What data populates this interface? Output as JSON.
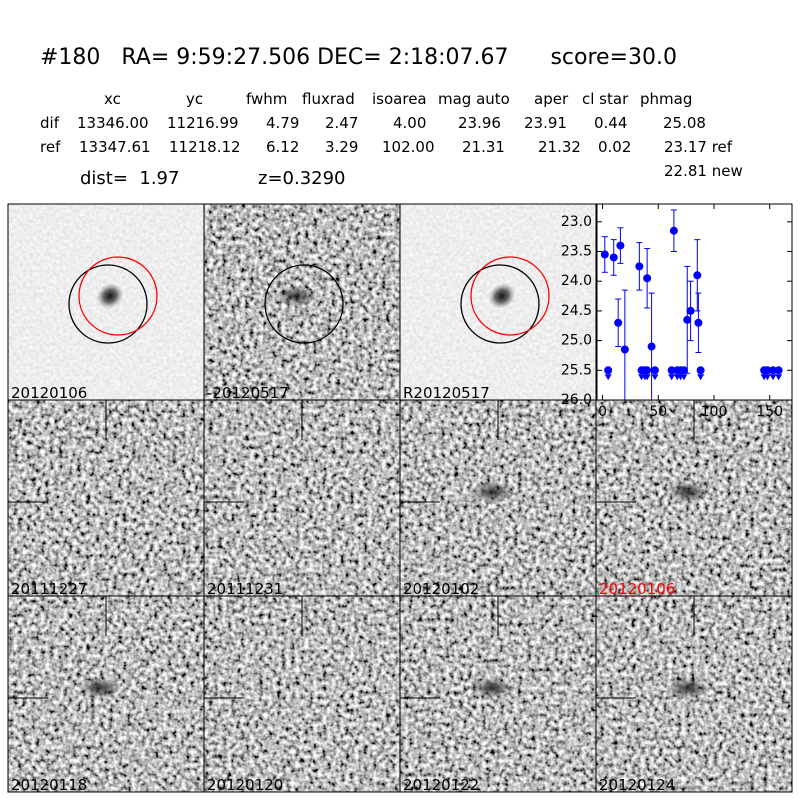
{
  "header": {
    "title": "#180   RA= 9:59:27.506 DEC= 2:18:07.67      score=30.0",
    "columns": [
      "xc",
      "yc",
      "fwhm",
      "fluxrad",
      "isoarea",
      "mag auto",
      "aper",
      "cl star",
      "phmag"
    ],
    "rows": [
      [
        "dif",
        "13346.00",
        "11216.99",
        "4.79",
        "2.47",
        "4.00",
        "23.96",
        "23.91",
        "0.44",
        "25.08"
      ],
      [
        "ref",
        "13347.61",
        "11218.12",
        "6.12",
        "3.29",
        "102.00",
        "21.31",
        "21.32",
        "0.02",
        "23.17 ref"
      ]
    ],
    "extra": "22.81 new",
    "dist": "dist=  1.97",
    "z": "z=0.3290"
  },
  "panels": [
    {
      "label": "20120106"
    },
    {
      "label": "-20120517"
    },
    {
      "label": "R20120517"
    },
    {
      "label": "20111227"
    },
    {
      "label": "20111231"
    },
    {
      "label": "20120102"
    },
    {
      "label": "20120106",
      "color": "#ff0000"
    },
    {
      "label": "20120118"
    },
    {
      "label": "20120120"
    },
    {
      "label": "20120122"
    },
    {
      "label": "20120124"
    }
  ],
  "chart_data": {
    "type": "errorbar",
    "xlim": [
      -5,
      170
    ],
    "ylim": [
      26.0,
      22.7
    ],
    "xticks": [
      0,
      50,
      100,
      150
    ],
    "yticks": [
      {
        "value": 23,
        "label": "23.0"
      },
      {
        "value": 23.5,
        "label": "23.5"
      },
      {
        "value": 24,
        "label": "24.0"
      },
      {
        "value": 24.5,
        "label": "24.5"
      },
      {
        "value": 25,
        "label": "25.0"
      },
      {
        "value": 25.5,
        "label": "25.5"
      },
      {
        "value": 26,
        "label": "26.0"
      }
    ],
    "series": [
      {
        "color": "#0000ff",
        "marker": "circle",
        "x": [
          2,
          10,
          14,
          16,
          20,
          33,
          40,
          44,
          64,
          76,
          79,
          85,
          86
        ],
        "values": [
          23.55,
          23.6,
          24.7,
          23.4,
          25.15,
          23.75,
          23.95,
          25.1,
          23.15,
          24.65,
          24.5,
          23.9,
          24.7
        ],
        "errors": [
          0.3,
          0.3,
          0.4,
          0.3,
          1.0,
          0.4,
          0.5,
          0.9,
          0.35,
          0.9,
          0.5,
          0.6,
          0.5
        ]
      },
      {
        "color": "#0000ff",
        "marker": "limit",
        "x": [
          5,
          35,
          38,
          40,
          47,
          62,
          67,
          70,
          73,
          88,
          145,
          148,
          153,
          158
        ],
        "values": [
          25.5,
          25.5,
          25.5,
          25.5,
          25.5,
          25.5,
          25.5,
          25.5,
          25.5,
          25.5,
          25.5,
          25.5,
          25.5,
          25.5
        ]
      }
    ]
  }
}
